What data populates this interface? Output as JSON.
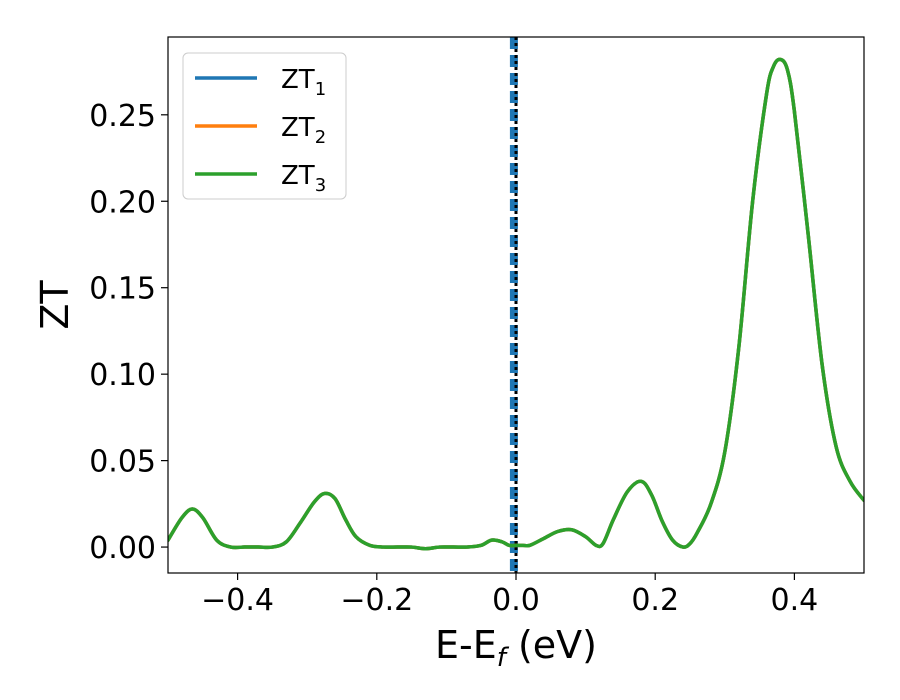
{
  "chart_data": {
    "type": "line",
    "title": "",
    "xlabel": "E-E",
    "xlabel_sub": "f",
    "xlabel_unit": " (eV)",
    "ylabel": "ZT",
    "xlim": [
      -0.5,
      0.5
    ],
    "ylim": [
      -0.015,
      0.295
    ],
    "grid": false,
    "legend_position": "top-left",
    "x_ticks": [
      -0.4,
      -0.2,
      0.0,
      0.2,
      0.4
    ],
    "x_tick_labels": [
      "−0.4",
      "−0.2",
      "0.0",
      "0.2",
      "0.4"
    ],
    "y_ticks": [
      0.0,
      0.05,
      0.1,
      0.15,
      0.2,
      0.25
    ],
    "y_tick_labels": [
      "0.00",
      "0.05",
      "0.10",
      "0.15",
      "0.20",
      "0.25"
    ],
    "reference_lines": [
      {
        "x": -0.003,
        "style": "dashed",
        "color": "#1f77b4"
      },
      {
        "x": 0.0,
        "style": "dotted",
        "color": "#000000"
      }
    ],
    "series": [
      {
        "name": "ZT",
        "subscript": "1",
        "color": "#1f77b4"
      },
      {
        "name": "ZT",
        "subscript": "2",
        "color": "#ff7f0e"
      },
      {
        "name": "ZT",
        "subscript": "3",
        "color": "#2ca02c"
      }
    ],
    "x": [
      -0.5,
      -0.48,
      -0.465,
      -0.45,
      -0.43,
      -0.41,
      -0.39,
      -0.37,
      -0.35,
      -0.33,
      -0.31,
      -0.29,
      -0.275,
      -0.26,
      -0.245,
      -0.23,
      -0.21,
      -0.19,
      -0.17,
      -0.15,
      -0.13,
      -0.11,
      -0.09,
      -0.07,
      -0.05,
      -0.035,
      -0.02,
      -0.01,
      0.0,
      0.01,
      0.02,
      0.04,
      0.06,
      0.08,
      0.1,
      0.115,
      0.125,
      0.14,
      0.16,
      0.18,
      0.195,
      0.21,
      0.225,
      0.24,
      0.25,
      0.26,
      0.28,
      0.3,
      0.32,
      0.34,
      0.36,
      0.37,
      0.38,
      0.39,
      0.4,
      0.42,
      0.44,
      0.46,
      0.48,
      0.5
    ],
    "y": [
      0.004,
      0.017,
      0.022,
      0.017,
      0.004,
      0.0,
      0.0,
      0.0,
      0.0,
      0.003,
      0.014,
      0.026,
      0.031,
      0.028,
      0.016,
      0.006,
      0.001,
      0.0,
      0.0,
      0.0,
      -0.001,
      0.0,
      0.0,
      0.0,
      0.001,
      0.004,
      0.003,
      0.001,
      0.001,
      0.001,
      0.001,
      0.005,
      0.009,
      0.01,
      0.006,
      0.001,
      0.002,
      0.016,
      0.032,
      0.038,
      0.03,
      0.015,
      0.004,
      0.0,
      0.002,
      0.008,
      0.025,
      0.055,
      0.115,
      0.2,
      0.262,
      0.278,
      0.282,
      0.276,
      0.252,
      0.18,
      0.105,
      0.058,
      0.038,
      0.027
    ]
  }
}
